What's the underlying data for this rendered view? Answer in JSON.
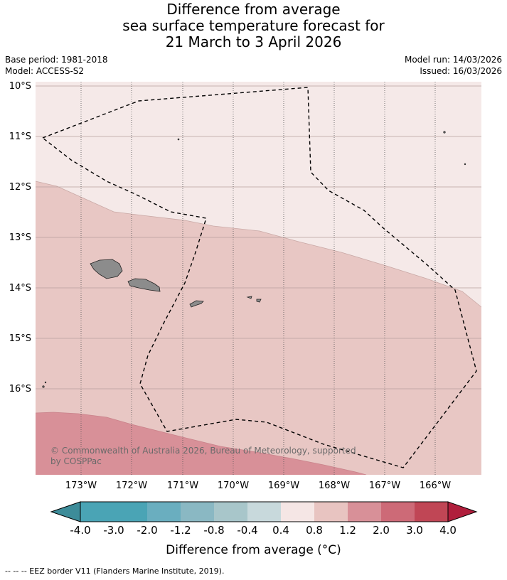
{
  "title": {
    "line1": "Difference from average",
    "line2": "sea surface temperature forecast for",
    "line3": "21 March to 3 April 2026"
  },
  "meta": {
    "base_period": "Base period: 1981-2018",
    "model": "Model: ACCESS-S2",
    "model_run": "Model run: 14/03/2026",
    "issued": "Issued: 16/03/2026"
  },
  "map": {
    "lat_labels": [
      "10°S",
      "11°S",
      "12°S",
      "13°S",
      "14°S",
      "15°S",
      "16°S"
    ],
    "lon_labels": [
      "173°W",
      "172°W",
      "171°W",
      "170°W",
      "169°W",
      "168°W",
      "167°W",
      "166°W"
    ],
    "copyright": "© Commonwealth of Australia 2026, Bureau of Meteorology, supported",
    "copyright2": "by COSPPac",
    "colors": {
      "zone_0_4_0_8": "#f5e9e8",
      "zone_0_8_1_2": "#e8c7c4",
      "zone_1_2_2_0": "#d89098",
      "land": "#8c8c8c"
    }
  },
  "colorbar": {
    "tick_labels": [
      "-4.0",
      "-3.0",
      "-2.0",
      "-1.2",
      "-0.8",
      "-0.4",
      "0.4",
      "0.8",
      "1.2",
      "2.0",
      "3.0",
      "4.0"
    ],
    "colors": [
      "#3d8c99",
      "#4aa4b5",
      "#6aaebf",
      "#8ab8c3",
      "#a8c6ca",
      "#c8d9dc",
      "#ffffff",
      "#f5e6e5",
      "#e8c4c1",
      "#d89098",
      "#cd6a77",
      "#c04655",
      "#b01e3c"
    ],
    "caption": "Difference from average (°C)"
  },
  "footer": "--  --  -- EEZ border V11 (Flanders Marine Institute, 2019)."
}
